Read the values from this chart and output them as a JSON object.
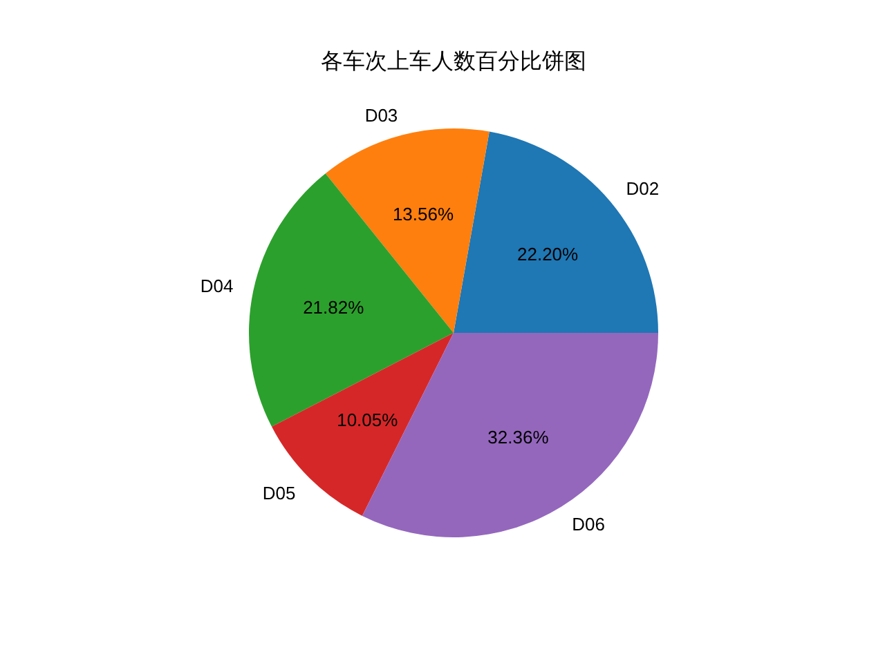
{
  "chart_data": {
    "type": "pie",
    "title": "各车次上车人数百分比饼图",
    "categories": [
      "D02",
      "D03",
      "D04",
      "D05",
      "D06"
    ],
    "values": [
      22.2,
      13.56,
      21.82,
      10.05,
      32.36
    ],
    "value_labels": [
      "22.20%",
      "13.56%",
      "21.82%",
      "10.05%",
      "32.36%"
    ],
    "colors": [
      "#1f77b4",
      "#ff7f0e",
      "#2ca02c",
      "#d62728",
      "#9467bd"
    ]
  }
}
